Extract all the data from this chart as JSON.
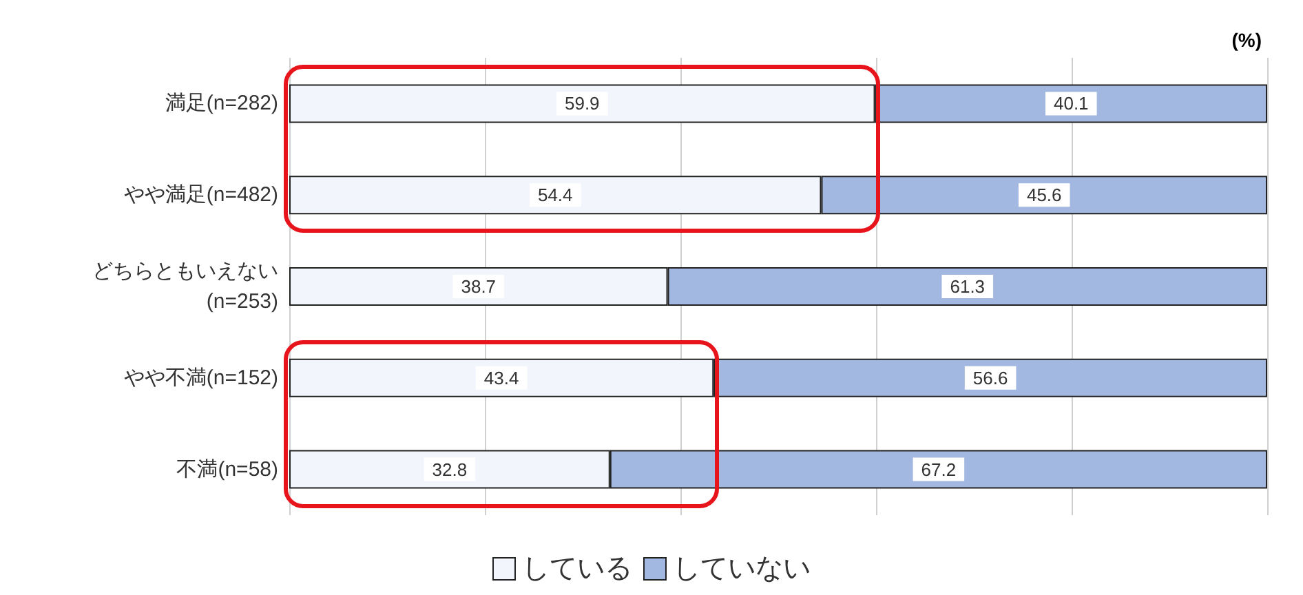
{
  "chart_data": {
    "type": "bar",
    "orientation": "horizontal",
    "stacked": true,
    "categories": [
      "満足(n=282)",
      "やや満足(n=482)",
      "どちらともいえない(n=253)",
      "やや不満(n=152)",
      "不満(n=58)"
    ],
    "series": [
      {
        "name": "している",
        "color": "#f2f6fc",
        "values": [
          59.9,
          54.4,
          38.7,
          43.4,
          32.8
        ]
      },
      {
        "name": "していない",
        "color": "#a3b8e0",
        "values": [
          40.1,
          45.6,
          61.3,
          56.6,
          67.2
        ]
      }
    ],
    "xlim": [
      0,
      100
    ],
    "xticks": [
      {
        "value": 0,
        "label": null
      },
      {
        "value": 20,
        "label": null
      },
      {
        "value": 40,
        "label": null
      },
      {
        "value": 60,
        "label": null
      },
      {
        "value": 80,
        "label": null
      },
      {
        "value": 100,
        "label": null
      }
    ],
    "tick_labels": "y",
    "grid": "x",
    "legend": "bottom",
    "data_labels": true,
    "annotations": [
      "(%)"
    ]
  }
}
